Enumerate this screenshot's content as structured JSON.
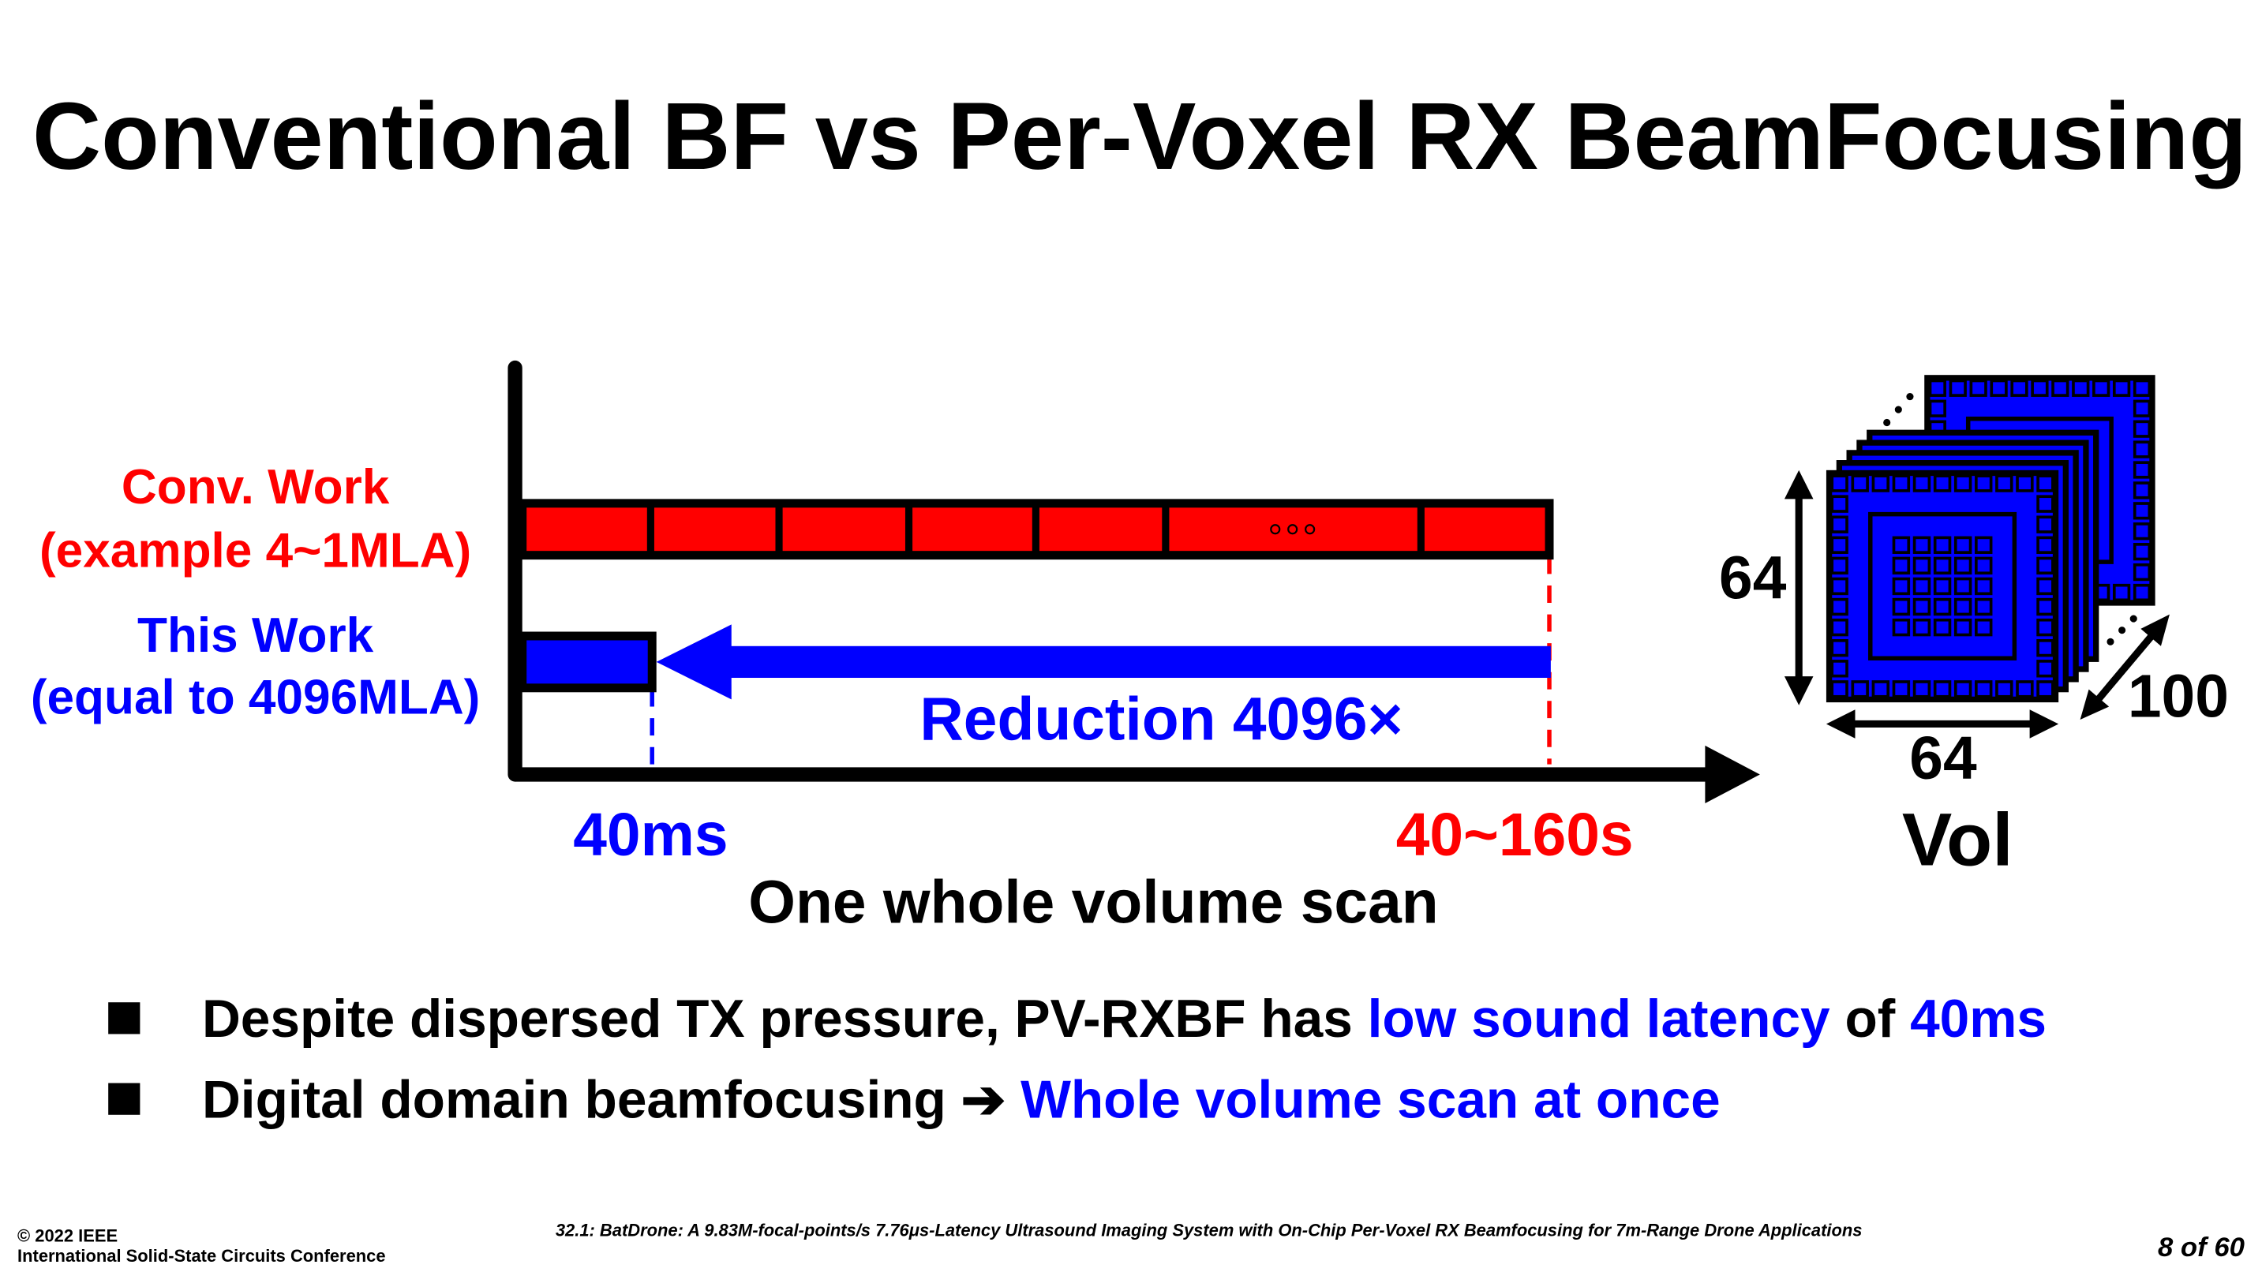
{
  "title": "Conventional BF vs Per-Voxel RX BeamFocusing",
  "diagram": {
    "conv_label": [
      "Conv. Work",
      "(example 4~1MLA)"
    ],
    "this_label": [
      "This Work",
      "(equal to 4096MLA)"
    ],
    "reduction": "Reduction 4096×",
    "t_this": "40ms",
    "t_conv": "40~160s",
    "axis_label": "One whole volume scan",
    "vol": {
      "height": "64",
      "width": "64",
      "depth": "100",
      "label": "Vol"
    }
  },
  "bullets": [
    {
      "segments": [
        {
          "text": "Despite dispersed TX pressure, PV-RXBF has ",
          "color": "#000000"
        },
        {
          "text": "low sound latency",
          "color": "#0000ff"
        },
        {
          "text": " of ",
          "color": "#000000"
        },
        {
          "text": "40ms",
          "color": "#0000ff"
        }
      ]
    },
    {
      "segments": [
        {
          "text": "Digital domain beamfocusing ",
          "color": "#000000"
        },
        {
          "text": "➔ ",
          "color": "#000000"
        },
        {
          "text": "Whole volume scan at once",
          "color": "#0000ff"
        }
      ]
    }
  ],
  "footer": {
    "copyright": "© 2022 IEEE",
    "conference": "International Solid-State Circuits Conference",
    "paper": "32.1: BatDrone: A 9.83M-focal-points/s 7.76μs-Latency Ultrasound Imaging System with On-Chip Per-Voxel RX Beamfocusing for 7m-Range Drone Applications",
    "page": "8 of 60"
  }
}
